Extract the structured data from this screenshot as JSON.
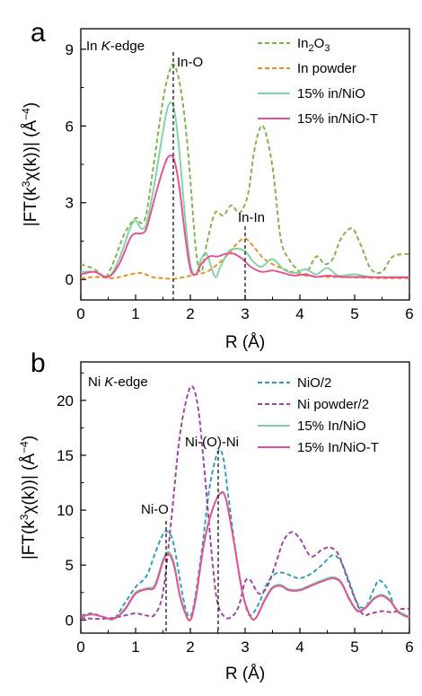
{
  "chart_data": [
    {
      "type": "line",
      "panel_label": "a",
      "corner_label": [
        "In ",
        "K",
        "-edge"
      ],
      "xlabel": "R (Å)",
      "ylabel": "|FT(k³χ(k))| (Å⁻⁴)",
      "xlim": [
        0,
        6
      ],
      "ylim": [
        -0.8,
        9.8
      ],
      "xticks": [
        "0",
        "1",
        "2",
        "3",
        "4",
        "5",
        "6"
      ],
      "yticks": [
        "0",
        "3",
        "6",
        "9"
      ],
      "grid": false,
      "legend": "top-right",
      "annotations": [
        {
          "text": "In-O",
          "x": 1.7
        },
        {
          "text": "In-In",
          "x": 3.0
        }
      ],
      "series": [
        {
          "name": "In₂O₃",
          "color": "#7cb342",
          "dash": "dashed",
          "x": [
            0,
            0.25,
            0.45,
            0.6,
            0.8,
            1.0,
            1.1,
            1.2,
            1.35,
            1.5,
            1.6,
            1.7,
            1.82,
            1.95,
            2.1,
            2.2,
            2.3,
            2.45,
            2.6,
            2.75,
            2.9,
            3.05,
            3.15,
            3.25,
            3.35,
            3.5,
            3.65,
            3.8,
            3.95,
            4.1,
            4.3,
            4.45,
            4.6,
            4.75,
            4.95,
            5.1,
            5.3,
            5.5,
            5.7,
            6.0
          ],
          "y": [
            0.6,
            0.4,
            0.1,
            0.7,
            1.8,
            2.4,
            2.2,
            2.6,
            4.8,
            7.0,
            8.0,
            8.4,
            7.5,
            5.2,
            1.2,
            0.3,
            1.4,
            2.6,
            2.5,
            2.9,
            2.6,
            3.3,
            4.8,
            5.8,
            5.9,
            4.4,
            1.6,
            0.8,
            0.4,
            0.2,
            0.9,
            0.6,
            0.8,
            1.6,
            2.0,
            1.4,
            0.4,
            0.3,
            0.9,
            1.0
          ]
        },
        {
          "name": "In powder",
          "color": "#ef8a1c",
          "dash": "dashed",
          "x": [
            0,
            0.3,
            0.6,
            0.9,
            1.1,
            1.3,
            1.5,
            1.7,
            1.9,
            2.1,
            2.3,
            2.5,
            2.7,
            2.85,
            3.0,
            3.15,
            3.35,
            3.6,
            3.85,
            4.1,
            4.5,
            5.0,
            5.5,
            6.0
          ],
          "y": [
            0.05,
            0.1,
            0.05,
            0.2,
            0.25,
            0.1,
            0.05,
            0.02,
            0.1,
            0.2,
            0.3,
            0.6,
            1.0,
            1.4,
            1.6,
            1.3,
            0.8,
            0.5,
            0.3,
            0.15,
            0.1,
            0.08,
            0.05,
            0.05
          ]
        },
        {
          "name": "15% in/NiO",
          "color": "#7dd3a2",
          "dash": "solid",
          "x": [
            0,
            0.25,
            0.5,
            0.7,
            0.9,
            1.0,
            1.1,
            1.2,
            1.35,
            1.5,
            1.6,
            1.7,
            1.8,
            1.9,
            2.0,
            2.1,
            2.2,
            2.3,
            2.45,
            2.55,
            2.7,
            2.85,
            3.0,
            3.15,
            3.3,
            3.5,
            3.7,
            3.9,
            4.1,
            4.3,
            4.5,
            4.7,
            5.0,
            5.3,
            5.6,
            6.0
          ],
          "y": [
            0.3,
            0.3,
            0.1,
            0.8,
            2.0,
            2.3,
            2.0,
            2.2,
            3.8,
            5.8,
            6.8,
            6.7,
            5.0,
            2.5,
            0.6,
            0.2,
            0.8,
            1.0,
            0.1,
            0.5,
            1.1,
            1.2,
            1.1,
            0.7,
            0.5,
            0.8,
            0.4,
            0.25,
            0.4,
            0.2,
            0.45,
            0.15,
            0.2,
            0.1,
            0.1,
            0.1
          ]
        },
        {
          "name": "15% in/NiO-T",
          "color": "#e84c95",
          "dash": "solid",
          "x": [
            0,
            0.25,
            0.5,
            0.7,
            0.9,
            1.0,
            1.1,
            1.2,
            1.35,
            1.5,
            1.6,
            1.7,
            1.8,
            1.9,
            2.0,
            2.1,
            2.2,
            2.35,
            2.5,
            2.65,
            2.8,
            2.95,
            3.1,
            3.3,
            3.5,
            3.7,
            3.9,
            4.1,
            4.3,
            4.5,
            4.8,
            5.2,
            5.6,
            6.0
          ],
          "y": [
            0.2,
            0.3,
            0.1,
            0.6,
            1.6,
            1.8,
            1.8,
            2.0,
            3.2,
            4.3,
            4.8,
            4.7,
            3.6,
            1.8,
            0.4,
            0.2,
            0.6,
            0.9,
            0.9,
            1.0,
            1.0,
            0.8,
            0.5,
            0.3,
            0.35,
            0.25,
            0.15,
            0.2,
            0.1,
            0.15,
            0.1,
            0.1,
            0.08,
            0.08
          ]
        }
      ]
    },
    {
      "type": "line",
      "panel_label": "b",
      "corner_label": [
        "Ni ",
        "K",
        "-edge"
      ],
      "xlabel": "R (Å)",
      "ylabel": "|FT(k³χ(k))| (Å⁻⁴)",
      "xlim": [
        0,
        6
      ],
      "ylim": [
        -1.2,
        23.5
      ],
      "xticks": [
        "0",
        "1",
        "2",
        "3",
        "4",
        "5",
        "6"
      ],
      "yticks": [
        "0",
        "5",
        "10",
        "15",
        "20"
      ],
      "grid": false,
      "legend": "top-right",
      "annotations": [
        {
          "text": "Ni-O",
          "x": 1.55
        },
        {
          "text": "Ni-(O)-Ni",
          "x": 2.52
        }
      ],
      "series": [
        {
          "name": "NiO/2",
          "color": "#2a9db5",
          "dash": "dashed",
          "x": [
            0,
            0.2,
            0.4,
            0.6,
            0.8,
            1.0,
            1.2,
            1.35,
            1.5,
            1.6,
            1.7,
            1.85,
            1.95,
            2.05,
            2.2,
            2.35,
            2.5,
            2.6,
            2.7,
            2.85,
            3.0,
            3.1,
            3.25,
            3.4,
            3.55,
            3.7,
            3.85,
            4.0,
            4.2,
            4.4,
            4.6,
            4.75,
            4.9,
            5.05,
            5.2,
            5.35,
            5.45,
            5.6,
            5.75,
            5.9,
            6.0
          ],
          "y": [
            0.4,
            0.6,
            0.3,
            0.1,
            1.5,
            3.0,
            4.0,
            6.0,
            7.8,
            8.0,
            6.8,
            2.5,
            0.5,
            1.0,
            6.0,
            12.0,
            15.3,
            14.8,
            11.0,
            5.5,
            1.5,
            0.4,
            1.5,
            3.3,
            4.2,
            4.3,
            4.0,
            3.8,
            4.2,
            5.0,
            5.9,
            5.3,
            3.5,
            1.5,
            1.2,
            2.8,
            3.6,
            2.8,
            1.0,
            0.4,
            0.5
          ]
        },
        {
          "name": "Ni powder/2",
          "color": "#9b3fa0",
          "dash": "dashed",
          "x": [
            0,
            0.3,
            0.6,
            0.8,
            1.0,
            1.2,
            1.35,
            1.5,
            1.65,
            1.8,
            1.95,
            2.05,
            2.15,
            2.25,
            2.4,
            2.5,
            2.65,
            2.8,
            2.9,
            3.0,
            3.1,
            3.25,
            3.4,
            3.55,
            3.7,
            3.85,
            4.0,
            4.2,
            4.4,
            4.55,
            4.7,
            4.85,
            5.0,
            5.15,
            5.3,
            5.5,
            5.7,
            5.85,
            6.0
          ],
          "y": [
            0.2,
            0.1,
            0.2,
            0.4,
            0.6,
            0.4,
            0.5,
            2.5,
            9.0,
            16.5,
            20.5,
            21.2,
            19.0,
            14.0,
            5.5,
            1.5,
            0.2,
            0.5,
            1.5,
            3.5,
            3.6,
            2.4,
            3.0,
            5.0,
            7.2,
            8.0,
            7.4,
            5.8,
            6.4,
            6.6,
            6.0,
            4.0,
            2.0,
            0.5,
            0.6,
            0.8,
            0.7,
            1.0,
            1.0
          ]
        },
        {
          "name": "15% In/NiO",
          "color": "#7dd3a2",
          "dash": "solid",
          "x": [
            0,
            0.2,
            0.4,
            0.6,
            0.8,
            1.0,
            1.2,
            1.35,
            1.5,
            1.6,
            1.7,
            1.8,
            1.9,
            2.0,
            2.1,
            2.25,
            2.4,
            2.55,
            2.65,
            2.8,
            2.95,
            3.1,
            3.2,
            3.35,
            3.5,
            3.65,
            3.8,
            4.0,
            4.2,
            4.4,
            4.6,
            4.75,
            4.9,
            5.05,
            5.2,
            5.35,
            5.5,
            5.65,
            5.8,
            6.0
          ],
          "y": [
            0.3,
            0.5,
            0.3,
            0.1,
            1.0,
            2.5,
            2.9,
            3.2,
            5.5,
            6.2,
            5.2,
            2.5,
            0.8,
            0.0,
            2.0,
            7.0,
            10.0,
            11.6,
            11.0,
            7.0,
            2.5,
            0.3,
            0.2,
            1.8,
            3.0,
            3.2,
            2.8,
            2.8,
            3.2,
            3.6,
            3.9,
            3.5,
            2.0,
            0.9,
            1.2,
            2.0,
            2.3,
            1.8,
            0.8,
            0.3
          ]
        },
        {
          "name": "15% In/NiO-T",
          "color": "#e84c95",
          "dash": "solid",
          "x": [
            0,
            0.2,
            0.4,
            0.6,
            0.8,
            1.0,
            1.2,
            1.35,
            1.5,
            1.6,
            1.7,
            1.8,
            1.9,
            2.0,
            2.1,
            2.25,
            2.4,
            2.55,
            2.65,
            2.8,
            2.95,
            3.1,
            3.2,
            3.35,
            3.5,
            3.65,
            3.8,
            4.0,
            4.2,
            4.4,
            4.6,
            4.75,
            4.9,
            5.05,
            5.2,
            5.35,
            5.5,
            5.65,
            5.8,
            6.0
          ],
          "y": [
            0.3,
            0.5,
            0.3,
            0.1,
            0.9,
            2.4,
            2.8,
            3.0,
            5.3,
            6.0,
            5.0,
            2.4,
            0.7,
            0.0,
            2.0,
            7.0,
            10.0,
            11.5,
            11.0,
            7.0,
            2.5,
            0.3,
            0.2,
            1.7,
            2.9,
            3.1,
            2.7,
            2.7,
            3.1,
            3.5,
            3.8,
            3.4,
            1.9,
            0.8,
            1.1,
            1.9,
            2.2,
            1.7,
            0.7,
            0.2
          ]
        }
      ]
    }
  ]
}
